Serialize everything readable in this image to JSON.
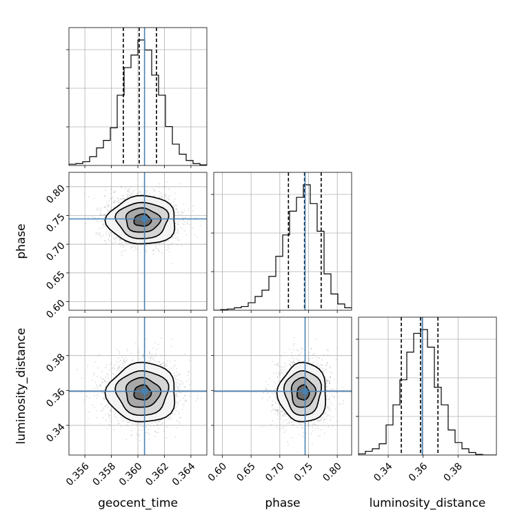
{
  "chart_data": {
    "type": "corner",
    "parameters": [
      {
        "name": "geocent_time",
        "label": "geocent_time",
        "range": [
          0.3548,
          0.3652
        ],
        "ticks": [
          0.356,
          0.358,
          0.36,
          0.362,
          0.364
        ],
        "tick_labels": [
          "0.356",
          "0.358",
          "0.360",
          "0.362",
          "0.364"
        ],
        "truth": 0.3605,
        "quantiles": [
          0.3589,
          0.3601,
          0.3614
        ],
        "histogram": {
          "bins": [
            0.3548,
            0.35532,
            0.35584,
            0.35636,
            0.35688,
            0.3574,
            0.35792,
            0.35844,
            0.35896,
            0.35948,
            0.36,
            0.36052,
            0.36104,
            0.36156,
            0.36208,
            0.3626,
            0.36312,
            0.36364,
            0.36416,
            0.36468,
            0.3652
          ],
          "counts": [
            0.01,
            0.015,
            0.03,
            0.07,
            0.14,
            0.2,
            0.3,
            0.56,
            0.78,
            0.88,
            1.0,
            0.92,
            0.72,
            0.56,
            0.31,
            0.17,
            0.09,
            0.04,
            0.015,
            0.005
          ]
        }
      },
      {
        "name": "phase",
        "label": "phase",
        "range": [
          0.585,
          0.825
        ],
        "ticks": [
          0.6,
          0.65,
          0.7,
          0.75,
          0.8
        ],
        "tick_labels": [
          "0.60",
          "0.65",
          "0.70",
          "0.75",
          "0.80"
        ],
        "truth": 0.744,
        "quantiles": [
          0.715,
          0.743,
          0.772
        ],
        "histogram": {
          "bins": [
            0.585,
            0.597,
            0.609,
            0.621,
            0.633,
            0.645,
            0.657,
            0.669,
            0.681,
            0.693,
            0.705,
            0.717,
            0.729,
            0.741,
            0.753,
            0.765,
            0.777,
            0.789,
            0.801,
            0.813,
            0.825
          ],
          "counts": [
            0.0,
            0.005,
            0.01,
            0.02,
            0.03,
            0.06,
            0.11,
            0.16,
            0.27,
            0.43,
            0.6,
            0.79,
            0.9,
            1.0,
            0.85,
            0.63,
            0.29,
            0.13,
            0.05,
            0.02
          ]
        }
      },
      {
        "name": "luminosity_distance",
        "label": "luminosity_distance",
        "range": [
          0.323,
          0.402
        ],
        "ticks": [
          0.34,
          0.36,
          0.38
        ],
        "tick_labels": [
          "0.34",
          "0.36",
          "0.38"
        ],
        "truth": 0.3595,
        "quantiles": [
          0.3475,
          0.3585,
          0.3685
        ],
        "histogram": {
          "bins": [
            0.323,
            0.32695,
            0.3309,
            0.33485,
            0.3388,
            0.34275,
            0.3467,
            0.35065,
            0.3546,
            0.35855,
            0.3625,
            0.36645,
            0.3704,
            0.37435,
            0.3783,
            0.38225,
            0.3862,
            0.39015,
            0.3941,
            0.39805,
            0.402
          ],
          "counts": [
            0.01,
            0.03,
            0.05,
            0.09,
            0.24,
            0.4,
            0.6,
            0.82,
            0.97,
            1.0,
            0.86,
            0.54,
            0.4,
            0.2,
            0.1,
            0.05,
            0.02,
            0.005,
            0.0,
            0.0
          ]
        }
      }
    ],
    "sigma": {
      "geocent_time": 0.0013,
      "phase": 0.021,
      "luminosity_distance": 0.0085
    },
    "contour_levels_sigma": [
      0.5,
      1.0,
      1.5,
      2.0
    ],
    "colors": {
      "truth": "#4682b4",
      "grid": "#b0b0b0",
      "contour": "#000000",
      "samples": "#808080"
    }
  }
}
